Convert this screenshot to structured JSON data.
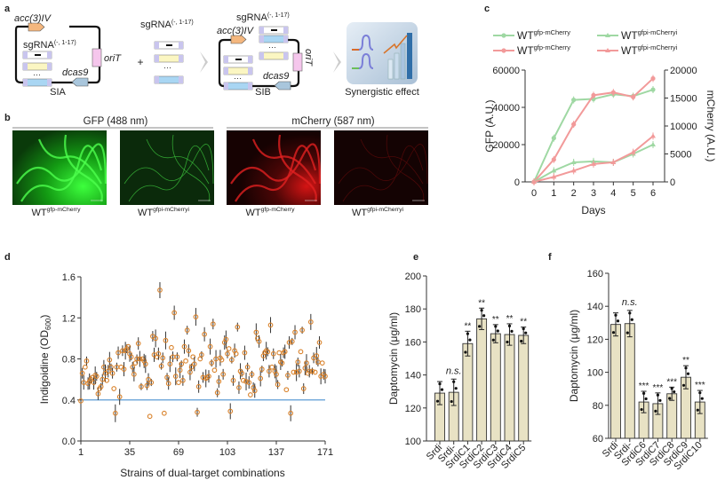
{
  "panel_labels": {
    "a": "a",
    "b": "b",
    "c": "c",
    "d": "d",
    "e": "e",
    "f": "f"
  },
  "panel_a": {
    "sia": {
      "label": "SIA",
      "acc": "acc(3)IV",
      "sgrna": "sgRNA",
      "sgrna_sup": "(-, 1-17)",
      "orit": "oriT",
      "dcas9": "dcas9",
      "dots": "···"
    },
    "plus": "+",
    "middle": {
      "sgrna": "sgRNA",
      "sgrna_sup": "(-, 1-17)",
      "dots": "···"
    },
    "sib": {
      "label": "SIB",
      "acc": "acc(3)IV",
      "sgrna": "sgRNA",
      "sgrna_sup": "(-, 1-17)",
      "orit": "oriT",
      "dcas9": "dcas9",
      "dots": "···"
    },
    "effect_label": "Synergistic effect",
    "colors": {
      "acc": "#f4b77e",
      "orit": "#f5c6ec",
      "dcas9": "#a9c6dc",
      "sg_end": "#c9c5ee",
      "sg_yellow": "#fbf6c2",
      "sg_blue": "#a9d6f3"
    }
  },
  "panel_b": {
    "gfp_header": "GFP (488 nm)",
    "mcherry_header": "mCherry (587 nm)",
    "images": [
      {
        "base": "WT",
        "sup": "gfp-mCherry",
        "channel": "green",
        "intensity": "high"
      },
      {
        "base": "WT",
        "sup": "gfpi-mCherryi",
        "channel": "green",
        "intensity": "low"
      },
      {
        "base": "WT",
        "sup": "gfp-mCherry",
        "channel": "red",
        "intensity": "high"
      },
      {
        "base": "WT",
        "sup": "gfpi-mCherryi",
        "channel": "red",
        "intensity": "low"
      }
    ]
  },
  "chart_data": [
    {
      "id": "c",
      "type": "line",
      "x": [
        0,
        1,
        2,
        3,
        4,
        5,
        6
      ],
      "xlabel": "Days",
      "ylabel": "GFP (A.U.)",
      "y2label": "mCherry (A.U.)",
      "ylim": [
        0,
        60000
      ],
      "y2lim": [
        0,
        20000
      ],
      "xticks": [
        "0",
        "1",
        "2",
        "3",
        "4",
        "5",
        "6"
      ],
      "yticks": [
        "0",
        "20000",
        "40000",
        "60000"
      ],
      "y2ticks": [
        "0",
        "5000",
        "10000",
        "15000",
        "20000"
      ],
      "legend_position": "top",
      "series": [
        {
          "name_base": "WT",
          "name_sup": "gfp-mCherry",
          "axis": "left",
          "color": "#9fd8a3",
          "marker": "circle",
          "values": [
            0,
            23500,
            44000,
            44500,
            47000,
            46000,
            49500
          ]
        },
        {
          "name_base": "WT",
          "name_sup": "gfp-mCherry",
          "axis": "right",
          "color": "#f29a9a",
          "marker": "circle",
          "values": [
            0,
            4000,
            10300,
            15500,
            16000,
            15200,
            18500
          ]
        },
        {
          "name_base": "WT",
          "name_sup": "gfpi-mCherryi",
          "axis": "left",
          "color": "#9fd8a3",
          "marker": "triangle",
          "values": [
            0,
            6000,
            10500,
            11000,
            10500,
            15000,
            20000
          ]
        },
        {
          "name_base": "WT",
          "name_sup": "gfpi-mCherryi",
          "axis": "right",
          "color": "#f29a9a",
          "marker": "triangle",
          "values": [
            0,
            900,
            2000,
            3200,
            3500,
            5300,
            8200
          ]
        }
      ]
    },
    {
      "id": "d",
      "type": "scatter",
      "xlabel": "Strains of dual-target combinations",
      "ylabel": "Indigoidine (OD",
      "ylabel_sub": "600",
      "ylabel_end": ")",
      "xlim": [
        1,
        171
      ],
      "ylim": [
        0,
        1.6
      ],
      "xticks": [
        "1",
        "35",
        "69",
        "103",
        "137",
        "171"
      ],
      "yticks": [
        "0.0",
        "0.4",
        "0.8",
        "1.2",
        "1.6"
      ],
      "reference_line": 0.4,
      "reference_color": "#5b9bd5",
      "marker_color": "#d9822b",
      "values": [
        0.39,
        0.66,
        0.57,
        0.72,
        0.78,
        0.56,
        0.58,
        0.6,
        0.62,
        0.57,
        0.64,
        0.63,
        0.46,
        0.51,
        0.53,
        0.6,
        0.72,
        0.66,
        0.59,
        0.68,
        0.79,
        0.72,
        0.66,
        0.51,
        0.27,
        0.72,
        0.86,
        0.43,
        0.72,
        0.88,
        0.7,
        0.88,
        0.9,
        0.92,
        0.85,
        0.82,
        0.72,
        0.65,
        0.76,
        0.8,
        0.95,
        0.8,
        0.53,
        0.8,
        0.78,
        0.75,
        0.54,
        0.6,
        0.24,
        0.57,
        1.02,
        0.84,
        1.0,
        0.82,
        0.85,
        1.47,
        0.73,
        0.81,
        0.27,
        0.98,
        0.62,
        0.56,
        0.75,
        0.91,
        0.82,
        1.25,
        0.63,
        0.82,
        0.57,
        0.69,
        0.75,
        0.59,
        0.92,
        0.78,
        1.08,
        0.88,
        0.67,
        0.72,
        0.82,
        0.75,
        1.21,
        0.28,
        0.53,
        0.8,
        0.84,
        0.62,
        1.04,
        0.61,
        0.62,
        0.63,
        0.92,
        0.76,
        1.14,
        0.69,
        0.8,
        0.47,
        0.58,
        0.81,
        0.79,
        0.65,
        0.96,
        0.99,
        0.85,
        0.9,
        0.29,
        0.79,
        0.59,
        0.88,
        0.85,
        1.11,
        0.52,
        0.68,
        0.66,
        0.59,
        0.86,
        0.58,
        0.72,
        0.57,
        0.45,
        0.65,
        0.52,
        0.49,
        1.06,
        1.0,
        0.97,
        0.61,
        0.7,
        0.83,
        0.86,
        0.88,
        0.87,
        0.68,
        1.13,
        0.72,
        0.85,
        0.68,
        0.65,
        0.55,
        0.86,
        0.77,
        0.76,
        0.86,
        0.87,
        0.5,
        0.64,
        0.96,
        0.27,
        0.97,
        0.67,
        1.06,
        0.67,
        0.77,
        0.68,
        0.87,
        1.08,
        0.51,
        0.71,
        0.76,
        0.66,
        0.68,
        1.16,
        0.68,
        0.81,
        0.67,
        0.83,
        0.77,
        0.96,
        0.63,
        0.76,
        0.65,
        0.63
      ]
    },
    {
      "id": "e",
      "type": "bar",
      "categories": [
        "Srdi",
        "Srdi-",
        "SrdiC1",
        "SrdiC2",
        "SrdiC3",
        "SrdiC4",
        "SrdiC5"
      ],
      "values": [
        129,
        129.5,
        159,
        174,
        165,
        164.5,
        164
      ],
      "errors": [
        7,
        8,
        7.5,
        6.5,
        5.5,
        6.5,
        5
      ],
      "significance": [
        "",
        "n.s.",
        "**",
        "**",
        "**",
        "**",
        "**"
      ],
      "ylabel": "Daptomycin (μg/ml)",
      "ylim": [
        100,
        200
      ],
      "yticks": [
        "100",
        "120",
        "140",
        "160",
        "180",
        "200"
      ],
      "bar_color": "#e8e2c4"
    },
    {
      "id": "f",
      "type": "bar",
      "categories": [
        "Srdi",
        "Srdi-",
        "SrdiC6",
        "SrdiC7",
        "SrdiC8",
        "SrdiC9",
        "SrdiC10"
      ],
      "values": [
        129,
        129.5,
        82,
        81,
        87,
        97,
        82
      ],
      "errors": [
        7,
        8,
        6.5,
        6.5,
        4,
        7,
        7
      ],
      "significance": [
        "",
        "n.s.",
        "***",
        "***",
        "***",
        "**",
        "***"
      ],
      "ylabel": "Daptomycin (μg/ml)",
      "ylim": [
        60,
        160
      ],
      "yticks": [
        "60",
        "80",
        "100",
        "120",
        "140",
        "160"
      ],
      "bar_color": "#e8e2c4"
    }
  ]
}
